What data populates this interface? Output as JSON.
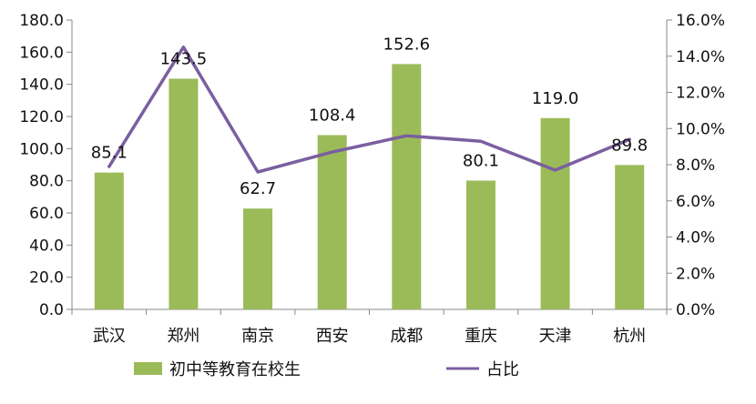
{
  "chart_data": {
    "type": "bar",
    "title": "",
    "xlabel": "",
    "ylabel": "",
    "ylim": [
      0,
      180
    ],
    "y2lim": [
      0,
      0.16
    ],
    "grid": false,
    "legend_position": "bottom",
    "categories": [
      "武汉",
      "郑州",
      "南京",
      "西安",
      "成都",
      "重庆",
      "天津",
      "杭州"
    ],
    "y_ticks": [
      "0.0",
      "20.0",
      "40.0",
      "60.0",
      "80.0",
      "100.0",
      "120.0",
      "140.0",
      "160.0",
      "180.0"
    ],
    "y2_ticks": [
      "0.0%",
      "2.0%",
      "4.0%",
      "6.0%",
      "8.0%",
      "10.0%",
      "12.0%",
      "14.0%",
      "16.0%"
    ],
    "series": [
      {
        "name": "初中等教育在校生",
        "type": "bar",
        "axis": "left",
        "color": "#9BBB59",
        "values": [
          85.1,
          143.5,
          62.7,
          108.4,
          152.6,
          80.1,
          119.0,
          89.8
        ],
        "labels": [
          "85.1",
          "143.5",
          "62.7",
          "108.4",
          "152.6",
          "80.1",
          "119.0",
          "89.8"
        ]
      },
      {
        "name": "占比",
        "type": "line",
        "axis": "right",
        "color": "#7B5FA0",
        "values": [
          0.079,
          0.145,
          0.076,
          0.087,
          0.096,
          0.093,
          0.077,
          0.094
        ]
      }
    ]
  }
}
